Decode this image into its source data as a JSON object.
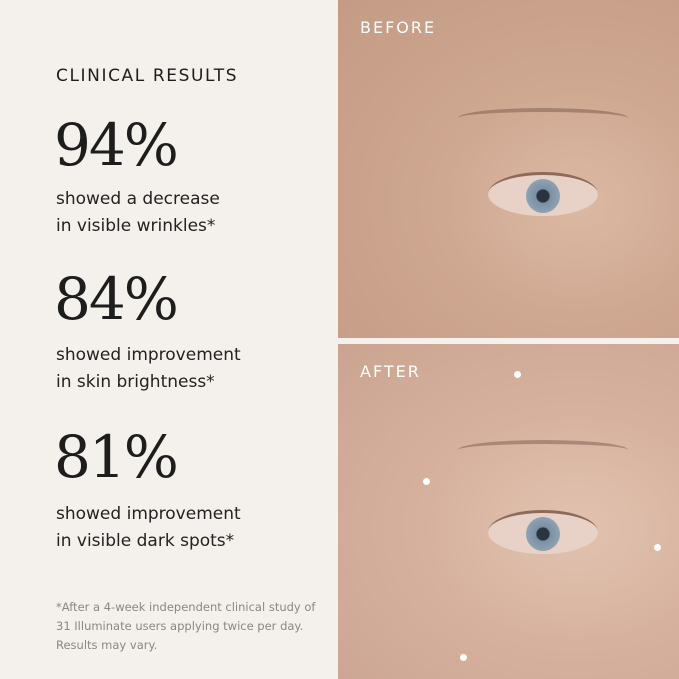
{
  "heading": "CLINICAL RESULTS",
  "stats": [
    {
      "value": "94%",
      "line1": "showed a decrease",
      "line2": "in visible wrinkles*"
    },
    {
      "value": "84%",
      "line1": "showed improvement",
      "line2": "in skin brightness*"
    },
    {
      "value": "81%",
      "line1": "showed improvement",
      "line2": "in visible dark spots*"
    }
  ],
  "footnote": "*After a 4-week independent clinical study of 31 Illuminate users applying twice per day. Results may vary.",
  "photos": {
    "before_label": "BEFORE",
    "after_label": "AFTER"
  },
  "colors": {
    "background": "#f4f0eb",
    "text": "#1d1d1d",
    "footnote": "#8a8784"
  }
}
